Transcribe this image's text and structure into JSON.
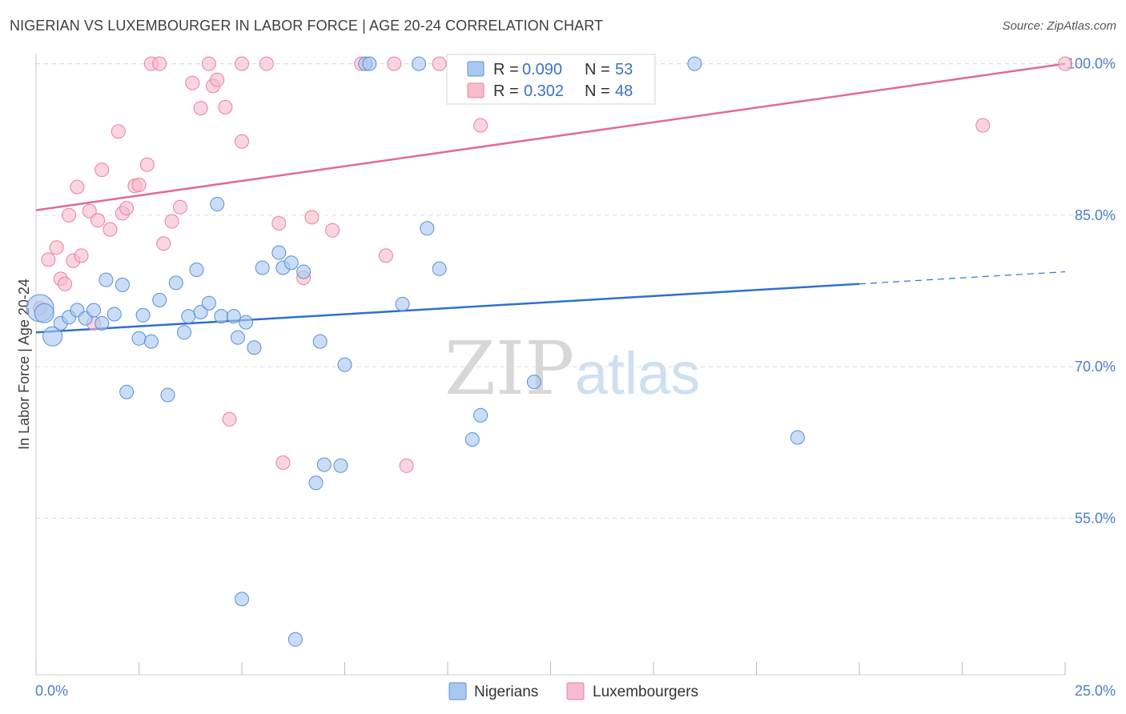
{
  "title": "NIGERIAN VS LUXEMBOURGER IN LABOR FORCE | AGE 20-24 CORRELATION CHART",
  "source": "Source: ZipAtlas.com",
  "watermark": {
    "zip": "ZIP",
    "atlas": "atlas"
  },
  "colors": {
    "blue_fill": "#a9c8f0",
    "blue_stroke": "#5b8fd6",
    "blue_line": "#2f6fce",
    "pink_fill": "#f6bccd",
    "pink_stroke": "#e8809f",
    "pink_line": "#e06b93",
    "tick_text": "#4a7fc8",
    "grid": "#dddddd"
  },
  "legend": {
    "rows": [
      {
        "r_label": "R =",
        "r_value": "0.090",
        "n_label": "N =",
        "n_value": "53"
      },
      {
        "r_label": "R =",
        "r_value": "0.302",
        "n_label": "N =",
        "n_value": "48"
      }
    ]
  },
  "bottom_legend": {
    "items": [
      "Nigerians",
      "Luxembourgers"
    ]
  },
  "chart_data": {
    "type": "scatter",
    "title": "NIGERIAN VS LUXEMBOURGER IN LABOR FORCE | AGE 20-24 CORRELATION CHART",
    "xlabel": "",
    "ylabel": "In Labor Force | Age 20-24",
    "xlim": [
      0,
      25
    ],
    "ylim": [
      39.5,
      101
    ],
    "x_tick_labels": [
      "0.0%",
      "25.0%"
    ],
    "y_ticks": [
      55,
      70,
      85,
      100
    ],
    "y_tick_labels": [
      "55.0%",
      "70.0%",
      "85.0%",
      "100.0%"
    ],
    "grid": true,
    "series": [
      {
        "name": "Nigerians",
        "R": 0.09,
        "N": 53,
        "trend": {
          "x0": 0,
          "y0": 73.4,
          "x1": 20,
          "y1": 78.2,
          "dashed_to_x": 25,
          "dashed_to_y": 79.4
        },
        "points": [
          [
            0.1,
            75.8
          ],
          [
            0.2,
            75.3
          ],
          [
            0.4,
            73.0
          ],
          [
            0.6,
            74.3
          ],
          [
            0.8,
            74.9
          ],
          [
            1.0,
            75.6
          ],
          [
            1.2,
            74.8
          ],
          [
            1.4,
            75.6
          ],
          [
            1.6,
            74.3
          ],
          [
            1.7,
            78.6
          ],
          [
            1.9,
            75.2
          ],
          [
            2.1,
            78.1
          ],
          [
            2.2,
            67.5
          ],
          [
            2.5,
            72.8
          ],
          [
            2.6,
            75.1
          ],
          [
            2.8,
            72.5
          ],
          [
            3.0,
            76.6
          ],
          [
            3.2,
            67.2
          ],
          [
            3.4,
            78.3
          ],
          [
            3.6,
            73.4
          ],
          [
            3.7,
            75.0
          ],
          [
            3.9,
            79.6
          ],
          [
            4.0,
            75.4
          ],
          [
            4.2,
            76.3
          ],
          [
            4.4,
            86.1
          ],
          [
            4.5,
            75.0
          ],
          [
            4.8,
            75.0
          ],
          [
            4.9,
            72.9
          ],
          [
            5.1,
            74.4
          ],
          [
            5.3,
            71.9
          ],
          [
            5.5,
            79.8
          ],
          [
            5.9,
            81.3
          ],
          [
            6.0,
            79.8
          ],
          [
            6.2,
            80.3
          ],
          [
            6.5,
            79.4
          ],
          [
            6.3,
            43.0
          ],
          [
            6.8,
            58.5
          ],
          [
            6.9,
            72.5
          ],
          [
            7.0,
            60.3
          ],
          [
            7.4,
            60.2
          ],
          [
            7.5,
            70.2
          ],
          [
            8.0,
            100.0
          ],
          [
            8.1,
            100.0
          ],
          [
            8.9,
            76.2
          ],
          [
            9.3,
            100.0
          ],
          [
            9.5,
            83.7
          ],
          [
            9.8,
            79.7
          ],
          [
            10.8,
            65.2
          ],
          [
            10.6,
            62.8
          ],
          [
            12.1,
            68.5
          ],
          [
            16.0,
            100.0
          ],
          [
            18.5,
            63.0
          ],
          [
            5.0,
            47.0
          ]
        ]
      },
      {
        "name": "Luxembourgers",
        "R": 0.302,
        "N": 48,
        "trend": {
          "x0": 0,
          "y0": 85.5,
          "x1": 25,
          "y1": 100.0
        },
        "points": [
          [
            0.1,
            75.8
          ],
          [
            0.3,
            80.6
          ],
          [
            0.5,
            81.8
          ],
          [
            0.6,
            78.7
          ],
          [
            0.7,
            78.2
          ],
          [
            0.8,
            85.0
          ],
          [
            0.9,
            80.5
          ],
          [
            1.0,
            87.8
          ],
          [
            1.1,
            81.0
          ],
          [
            1.3,
            85.4
          ],
          [
            1.4,
            74.3
          ],
          [
            1.5,
            84.5
          ],
          [
            1.6,
            89.5
          ],
          [
            1.8,
            83.6
          ],
          [
            2.0,
            93.3
          ],
          [
            2.1,
            85.2
          ],
          [
            2.2,
            85.7
          ],
          [
            2.4,
            87.9
          ],
          [
            2.5,
            88.0
          ],
          [
            2.7,
            90.0
          ],
          [
            2.8,
            100.0
          ],
          [
            3.0,
            100.0
          ],
          [
            3.1,
            82.2
          ],
          [
            3.3,
            84.4
          ],
          [
            3.5,
            85.8
          ],
          [
            3.8,
            98.1
          ],
          [
            4.0,
            95.6
          ],
          [
            4.2,
            100.0
          ],
          [
            4.3,
            97.8
          ],
          [
            4.4,
            98.4
          ],
          [
            4.6,
            95.7
          ],
          [
            4.7,
            64.8
          ],
          [
            5.0,
            92.3
          ],
          [
            5.0,
            100.0
          ],
          [
            5.6,
            100.0
          ],
          [
            5.9,
            84.2
          ],
          [
            6.0,
            60.5
          ],
          [
            6.5,
            78.8
          ],
          [
            6.7,
            84.8
          ],
          [
            7.2,
            83.5
          ],
          [
            7.9,
            100.0
          ],
          [
            8.5,
            81.0
          ],
          [
            8.7,
            100.0
          ],
          [
            9.0,
            60.2
          ],
          [
            9.8,
            100.0
          ],
          [
            10.8,
            93.9
          ],
          [
            23.0,
            93.9
          ],
          [
            25.0,
            100.0
          ]
        ]
      }
    ]
  }
}
